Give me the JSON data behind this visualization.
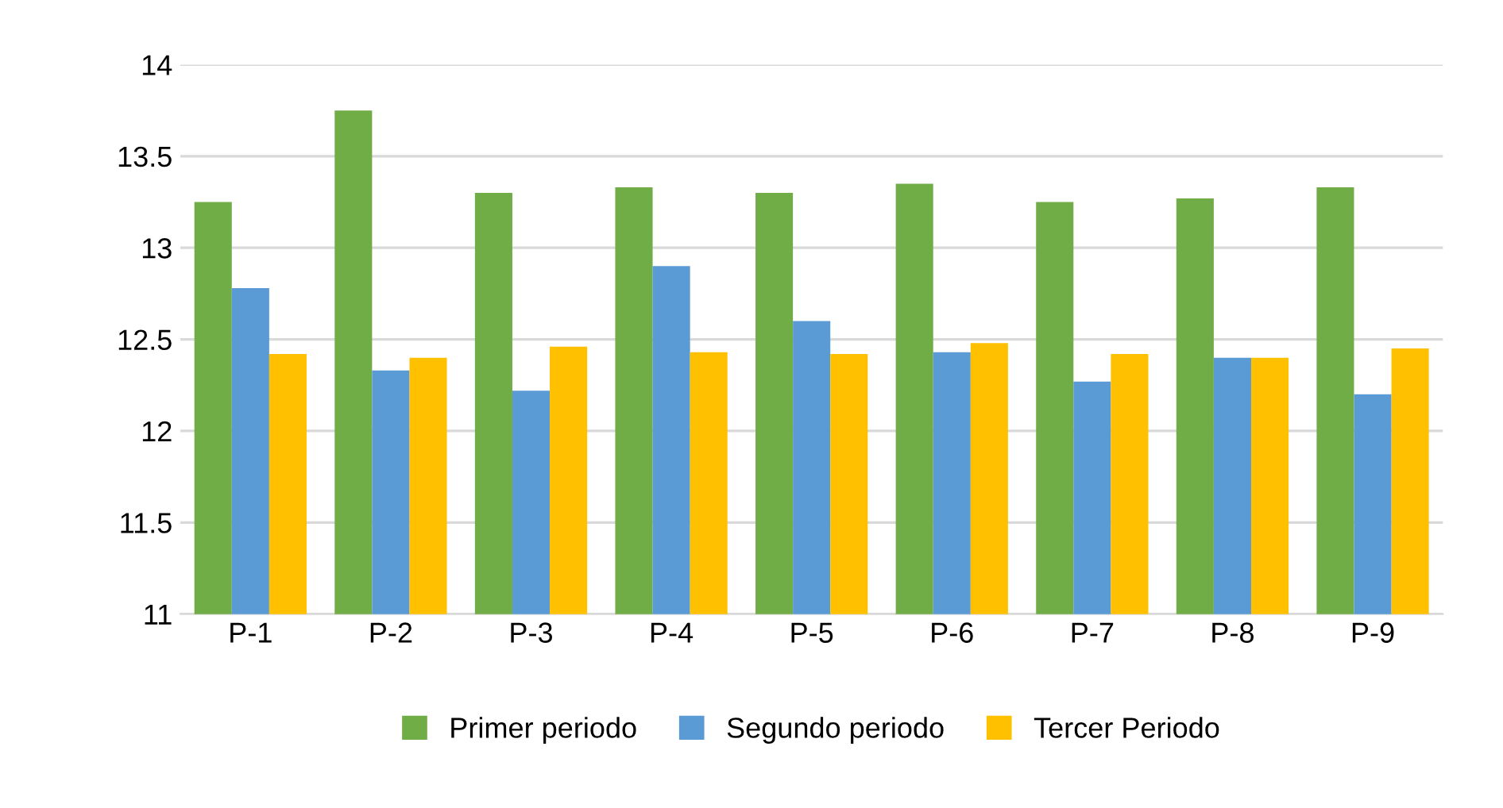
{
  "chart_data": {
    "type": "bar",
    "categories": [
      "P-1",
      "P-2",
      "P-3",
      "P-4",
      "P-5",
      "P-6",
      "P-7",
      "P-8",
      "P-9"
    ],
    "series": [
      {
        "name": "Primer periodo",
        "color": "#70ad47",
        "values": [
          13.25,
          13.75,
          13.3,
          13.33,
          13.3,
          13.35,
          13.25,
          13.27,
          13.33
        ]
      },
      {
        "name": "Segundo periodo",
        "color": "#5b9bd5",
        "values": [
          12.78,
          12.33,
          12.22,
          12.9,
          12.6,
          12.43,
          12.27,
          12.4,
          12.2
        ]
      },
      {
        "name": "Tercer Periodo",
        "color": "#ffc000",
        "values": [
          12.42,
          12.4,
          12.46,
          12.43,
          12.42,
          12.48,
          12.42,
          12.4,
          12.45
        ]
      }
    ],
    "ylim": [
      11,
      14
    ],
    "yticks": [
      11,
      11.5,
      12,
      12.5,
      13,
      13.5,
      14
    ],
    "grid": "y",
    "legend": "bottom"
  }
}
